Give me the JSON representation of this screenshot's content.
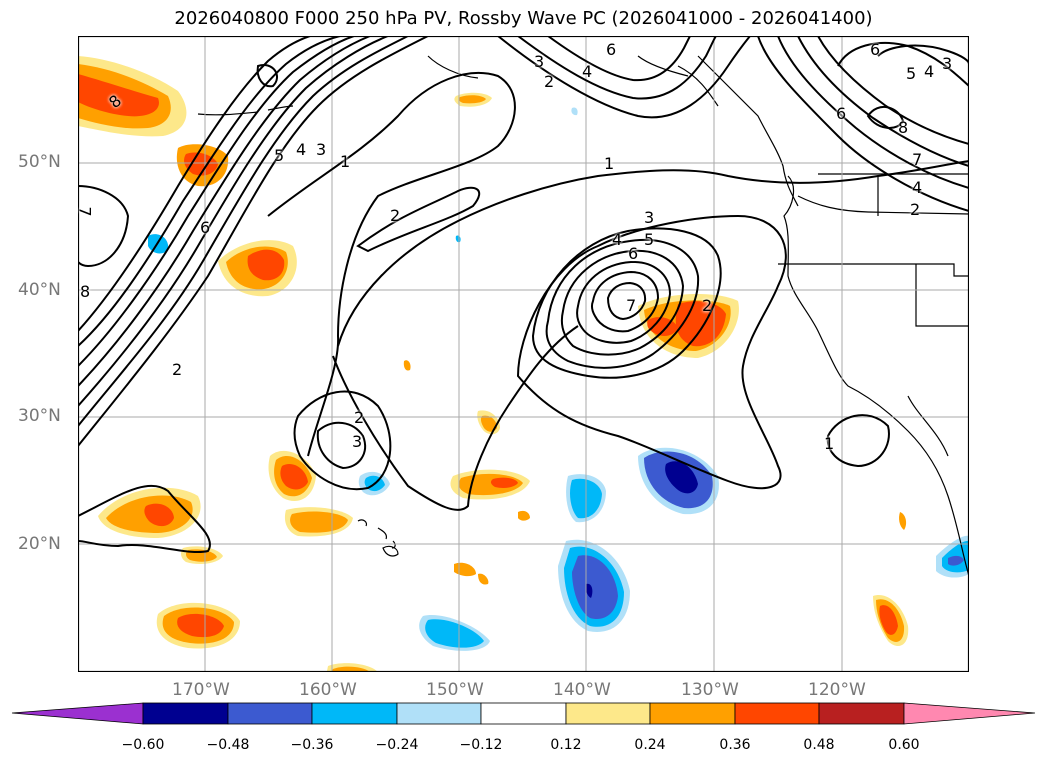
{
  "title": "2026040800 F000 250 hPa PV, Rossby Wave PC (2026041000 - 2026041400)",
  "lat_labels": [
    "50°N",
    "40°N",
    "30°N",
    "20°N"
  ],
  "lon_labels": [
    "170°W",
    "160°W",
    "150°W",
    "140°W",
    "130°W",
    "120°W"
  ],
  "colorbar": {
    "tick_labels": [
      "−0.60",
      "−0.48",
      "−0.36",
      "−0.24",
      "−0.12",
      "0.12",
      "0.24",
      "0.36",
      "0.48",
      "0.60"
    ],
    "colors": [
      "#9b30d0",
      "#000090",
      "#3c5ad0",
      "#00b8f8",
      "#b0e0f8",
      "#ffffff",
      "#fde88a",
      "#ffa000",
      "#ff4600",
      "#b82020",
      "#ff88b0"
    ]
  },
  "contour_labels": [
    "8",
    "7",
    "6",
    "5",
    "4",
    "3",
    "1",
    "2",
    "2",
    "8",
    "2",
    "3",
    "2",
    "6",
    "3",
    "4",
    "1",
    "3",
    "4",
    "5",
    "6",
    "7",
    "2",
    "6",
    "5",
    "4",
    "3",
    "6",
    "8",
    "7",
    "4",
    "2",
    "1"
  ]
}
